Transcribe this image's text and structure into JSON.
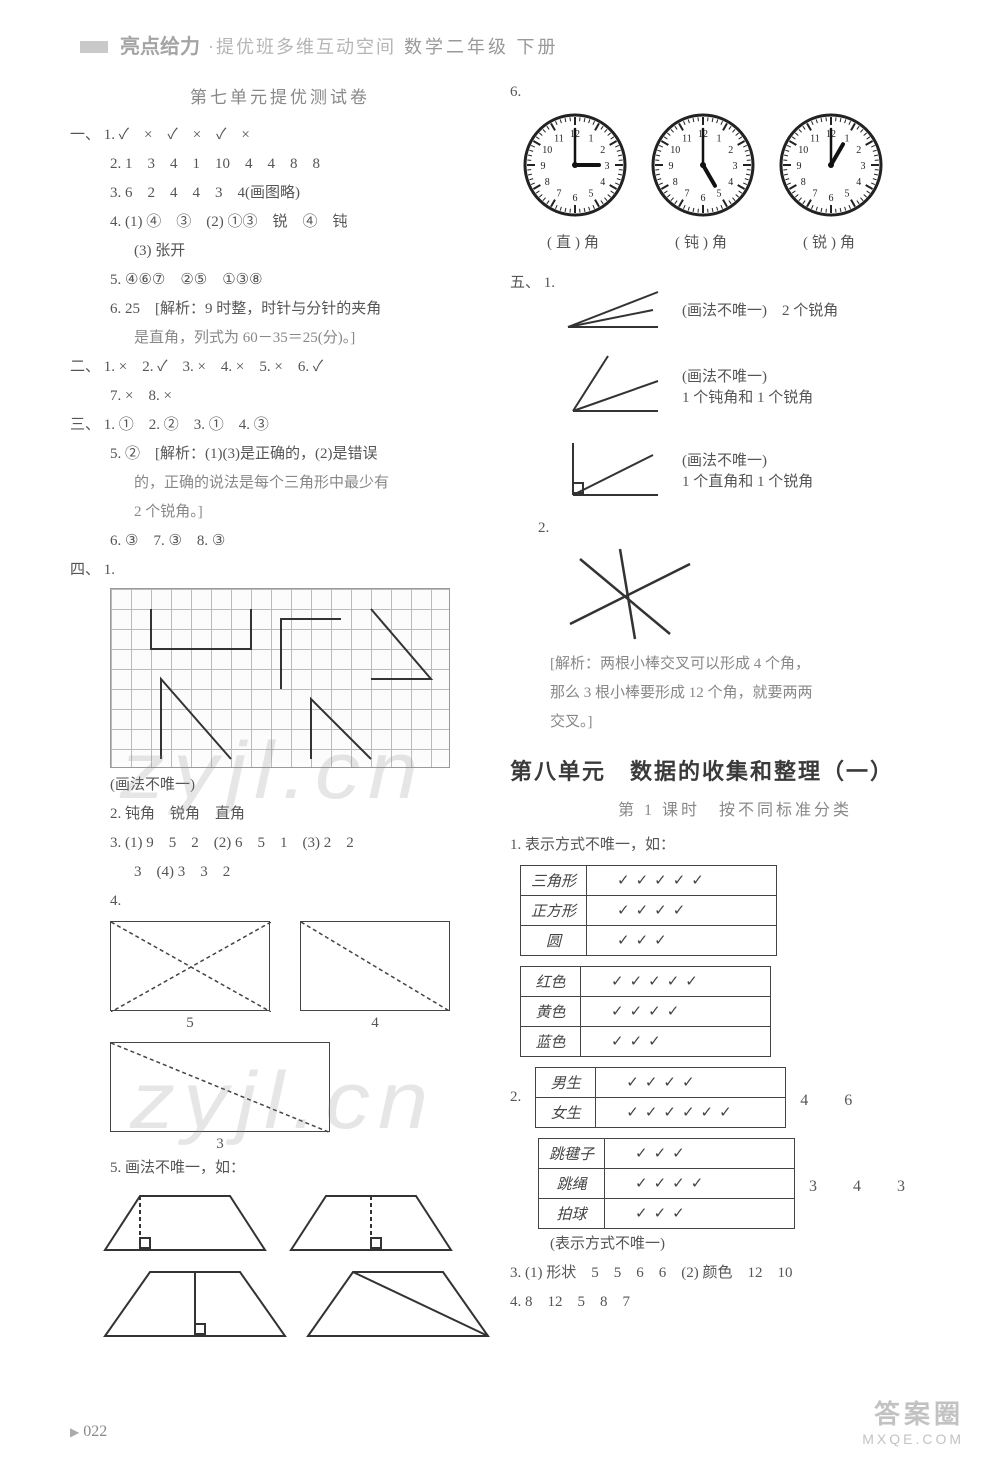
{
  "header": {
    "brand": "亮点给力",
    "sub": "·提优班多维互动空间",
    "subject": "数学二年级 下册"
  },
  "left": {
    "test_title": "第七单元提优测试卷",
    "sec1": {
      "label": "一、",
      "q1": "1. ✓　×　✓　×　✓　×",
      "q2": "2. 1　3　4　1　10　4　4　8　8",
      "q3": "3. 6　2　4　4　3　4(画图略)",
      "q4a": "4. (1) ④　③　(2) ①③　锐　④　钝",
      "q4b": "(3) 张开",
      "q5": "5. ④⑥⑦　②⑤　①③⑧",
      "q6a": "6. 25　[解析：9 时整，时针与分针的夹角",
      "q6b": "是直角，列式为 60－35＝25(分)。]"
    },
    "sec2": {
      "label": "二、",
      "line1": "1. ×　2. ✓　3. ×　4. ×　5. ×　6. ✓",
      "line2": "7. ×　8. ×"
    },
    "sec3": {
      "label": "三、",
      "line1": "1. ①　2. ②　3. ①　4. ③",
      "q5a": "5. ②　[解析：(1)(3)是正确的，(2)是错误",
      "q5b": "的，正确的说法是每个三角形中最少有",
      "q5c": "2 个锐角。]",
      "line6": "6. ③　7. ③　8. ③"
    },
    "sec4": {
      "label": "四、",
      "q1": "1.",
      "grid_note": "(画法不唯一)",
      "q2": "2. 钝角　锐角　直角",
      "q3a": "3. (1) 9　5　2　(2) 6　5　1　(3) 2　2",
      "q3b": "3　(4) 3　3　2",
      "q4": "4.",
      "rects": {
        "a": "5",
        "b": "4",
        "c": "3"
      },
      "q5": "5. 画法不唯一，如："
    }
  },
  "right": {
    "q6": "6.",
    "clocks": [
      {
        "h": 3,
        "m": 0,
        "label": "(直)角"
      },
      {
        "h": 5,
        "m": 0,
        "label": "(钝)角"
      },
      {
        "h": 1,
        "m": 0,
        "label": "(锐)角"
      }
    ],
    "sec5": {
      "label": "五、",
      "q1": "1.",
      "a1_note": "(画法不唯一)　2 个锐角",
      "a2_note1": "(画法不唯一)",
      "a2_note2": "1 个钝角和 1 个锐角",
      "a3_note1": "(画法不唯一)",
      "a3_note2": "1 个直角和 1 个锐角",
      "q2": "2.",
      "q2_expl1": "[解析：两根小棒交叉可以形成 4 个角，",
      "q2_expl2": "那么 3 根小棒要形成 12 个角，就要两两",
      "q2_expl3": "交叉。]"
    },
    "unit8_title": "第八单元　数据的收集和整理（一）",
    "lesson1": "第 1 课时　按不同标准分类",
    "q1_intro": "1. 表示方式不唯一，如：",
    "table1": {
      "rows": [
        {
          "label": "三角形",
          "checks": 5
        },
        {
          "label": "正方形",
          "checks": 4
        },
        {
          "label": "圆",
          "checks": 3
        }
      ]
    },
    "table2": {
      "rows": [
        {
          "label": "红色",
          "checks": 5
        },
        {
          "label": "黄色",
          "checks": 4
        },
        {
          "label": "蓝色",
          "checks": 3
        }
      ]
    },
    "q2": "2.",
    "table3": {
      "rows": [
        {
          "label": "男生",
          "checks": 4
        },
        {
          "label": "女生",
          "checks": 6
        }
      ],
      "side": "4　6"
    },
    "table4": {
      "rows": [
        {
          "label": "跳毽子",
          "checks": 3
        },
        {
          "label": "跳绳",
          "checks": 4
        },
        {
          "label": "拍球",
          "checks": 3
        }
      ],
      "side": "3　4　3"
    },
    "note": "(表示方式不唯一)",
    "q3": "3. (1) 形状　5　5　6　6　(2) 颜色　12　10",
    "q4": "4. 8　12　5　8　7"
  },
  "page_num": "022",
  "watermark": "zyjl.cn",
  "corner": {
    "b1": "答案圈",
    "b2": "MXQE.COM"
  },
  "colors": {
    "text": "#555555",
    "muted": "#888888",
    "border": "#444444",
    "grid": "#bbbbbb"
  }
}
